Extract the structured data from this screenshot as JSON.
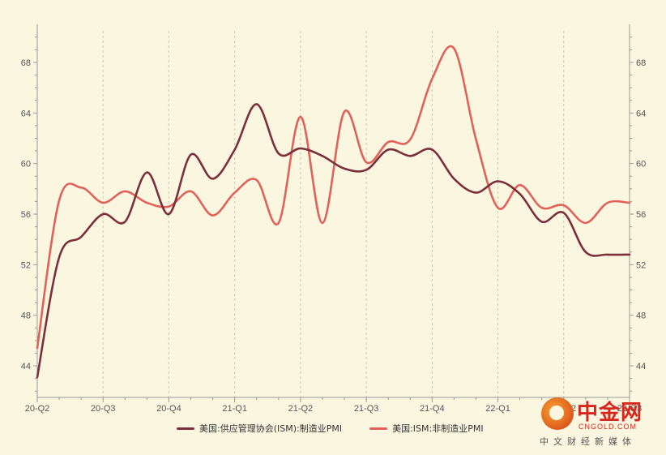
{
  "chart_data": {
    "type": "line",
    "title": "",
    "xlabel": "",
    "ylabel": "",
    "x_ticks": [
      "20-Q2",
      "20-Q3",
      "20-Q4",
      "21-Q1",
      "21-Q2",
      "21-Q3",
      "21-Q4",
      "22-Q1",
      "22-Q2",
      "22-Q3"
    ],
    "y_ticks": [
      44,
      48,
      52,
      56,
      60,
      64,
      68
    ],
    "ylim": [
      41.5,
      70.5
    ],
    "xlim": [
      0,
      27
    ],
    "secondary_axis": true,
    "grid": "dashed vertical gridlines at quarter ticks",
    "legend_position": "bottom",
    "series": [
      {
        "name": "美国:供应管理协会(ISM):制造业PMI",
        "color": "#7b2f3a",
        "x": [
          0,
          1,
          2,
          3,
          4,
          5,
          6,
          7,
          8,
          9,
          10,
          11,
          12,
          13,
          14,
          15,
          16,
          17,
          18,
          19,
          20,
          21,
          22,
          23,
          24,
          25,
          26,
          27
        ],
        "values": [
          43.1,
          52.6,
          54.2,
          56.0,
          55.4,
          59.3,
          56.0,
          60.7,
          58.8,
          61.1,
          64.7,
          60.8,
          61.2,
          60.6,
          59.6,
          59.5,
          61.1,
          60.6,
          61.1,
          58.8,
          57.7,
          58.6,
          57.6,
          55.4,
          56.1,
          53.0,
          52.8,
          52.8
        ]
      },
      {
        "name": "美国:ISM:非制造业PMI",
        "color": "#e0625a",
        "x": [
          0,
          1,
          2,
          3,
          4,
          5,
          6,
          7,
          8,
          9,
          10,
          11,
          12,
          13,
          14,
          15,
          16,
          17,
          18,
          19,
          20,
          21,
          22,
          23,
          24,
          25,
          26,
          27
        ],
        "values": [
          45.4,
          57.1,
          58.1,
          56.9,
          57.8,
          56.9,
          56.6,
          57.8,
          55.9,
          57.7,
          58.7,
          55.3,
          63.7,
          55.3,
          64.1,
          60.1,
          61.7,
          61.9,
          66.7,
          69.1,
          61.9,
          56.5,
          58.3,
          56.5,
          56.7,
          55.3,
          56.9,
          56.9
        ]
      }
    ]
  },
  "legend": {
    "series1": "美国:供应管理协会(ISM):制造业PMI",
    "series2": "美国:ISM:非制造业PMI"
  },
  "watermark": {
    "brand": "中金网",
    "domain": "CNGOLD.COM",
    "subtitle": "中文财经新媒体"
  }
}
